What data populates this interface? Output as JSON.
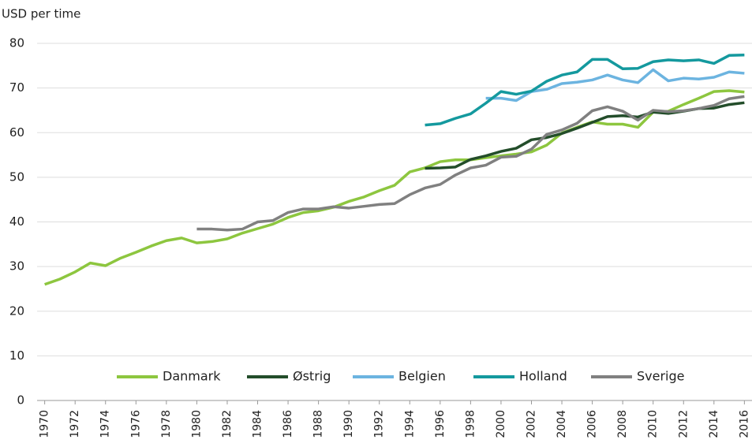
{
  "chart_data": {
    "type": "line",
    "y_label": "USD per time",
    "x": [
      1970,
      1971,
      1972,
      1973,
      1974,
      1975,
      1976,
      1977,
      1978,
      1979,
      1980,
      1981,
      1982,
      1983,
      1984,
      1985,
      1986,
      1987,
      1988,
      1989,
      1990,
      1991,
      1992,
      1993,
      1994,
      1995,
      1996,
      1997,
      1998,
      1999,
      2000,
      2001,
      2002,
      2003,
      2004,
      2005,
      2006,
      2007,
      2008,
      2009,
      2010,
      2011,
      2012,
      2013,
      2014,
      2015,
      2016
    ],
    "xlim": [
      1969.5,
      2016.5
    ],
    "xticks": [
      1970,
      1972,
      1974,
      1976,
      1978,
      1980,
      1982,
      1984,
      1986,
      1988,
      1990,
      1992,
      1994,
      1996,
      1998,
      2000,
      2002,
      2004,
      2006,
      2008,
      2010,
      2012,
      2014,
      2016
    ],
    "ylim": [
      0,
      80
    ],
    "yticks": [
      0,
      10,
      20,
      30,
      40,
      50,
      60,
      70,
      80
    ],
    "grid": true,
    "legend": "bottom",
    "series": [
      {
        "name": "Danmark",
        "color": "#8dc63f",
        "values": [
          26,
          27.2,
          28.8,
          30.8,
          30.2,
          31.9,
          33.2,
          34.6,
          35.8,
          36.4,
          35.3,
          35.6,
          36.2,
          37.5,
          38.5,
          39.5,
          41,
          42.1,
          42.5,
          43.3,
          44.6,
          45.6,
          47,
          48.2,
          51.2,
          52.1,
          53.5,
          53.9,
          53.9,
          54.4,
          54.8,
          55.2,
          55.7,
          57.2,
          59.9,
          61.2,
          62.4,
          61.9,
          61.9,
          61.2,
          64.6,
          64.8,
          66.3,
          67.7,
          69.2,
          69.4,
          69.1
        ]
      },
      {
        "name": "Østrig",
        "color": "#234d2a",
        "values": [
          null,
          null,
          null,
          null,
          null,
          null,
          null,
          null,
          null,
          null,
          null,
          null,
          null,
          null,
          null,
          null,
          null,
          null,
          null,
          null,
          null,
          null,
          null,
          null,
          null,
          52,
          52.1,
          52.3,
          54,
          54.8,
          55.8,
          56.5,
          58.4,
          58.9,
          59.8,
          61,
          62.3,
          63.6,
          63.8,
          63.5,
          64.6,
          64.3,
          64.8,
          65.4,
          65.5,
          66.3,
          66.7
        ]
      },
      {
        "name": "Belgien",
        "color": "#6cb4e0",
        "values": [
          null,
          null,
          null,
          null,
          null,
          null,
          null,
          null,
          null,
          null,
          null,
          null,
          null,
          null,
          null,
          null,
          null,
          null,
          null,
          null,
          null,
          null,
          null,
          null,
          null,
          null,
          null,
          null,
          null,
          67.7,
          67.7,
          67.2,
          69.2,
          69.7,
          71,
          71.3,
          71.8,
          72.9,
          71.8,
          71.2,
          74.1,
          71.6,
          72.2,
          72,
          72.4,
          73.6,
          73.3
        ]
      },
      {
        "name": "Holland",
        "color": "#14999e",
        "values": [
          null,
          null,
          null,
          null,
          null,
          null,
          null,
          null,
          null,
          null,
          null,
          null,
          null,
          null,
          null,
          null,
          null,
          null,
          null,
          null,
          null,
          null,
          null,
          null,
          null,
          61.7,
          62,
          63.2,
          64.2,
          66.6,
          69.2,
          68.6,
          69.3,
          71.5,
          72.9,
          73.6,
          76.4,
          76.4,
          74.3,
          74.4,
          75.9,
          76.3,
          76.1,
          76.3,
          75.5,
          77.3,
          77.4
        ]
      },
      {
        "name": "Sverige",
        "color": "#808080",
        "values": [
          null,
          null,
          null,
          null,
          null,
          null,
          null,
          null,
          null,
          null,
          38.4,
          38.4,
          38.2,
          38.4,
          40,
          40.3,
          42.1,
          42.9,
          42.9,
          43.4,
          43.1,
          43.5,
          43.9,
          44.1,
          46.1,
          47.6,
          48.4,
          50.5,
          52.1,
          52.7,
          54.5,
          54.7,
          56.3,
          59.6,
          60.6,
          62.1,
          64.9,
          65.8,
          64.8,
          62.8,
          65,
          64.7,
          64.9,
          65.4,
          66.1,
          67.6,
          68.1
        ]
      }
    ]
  }
}
